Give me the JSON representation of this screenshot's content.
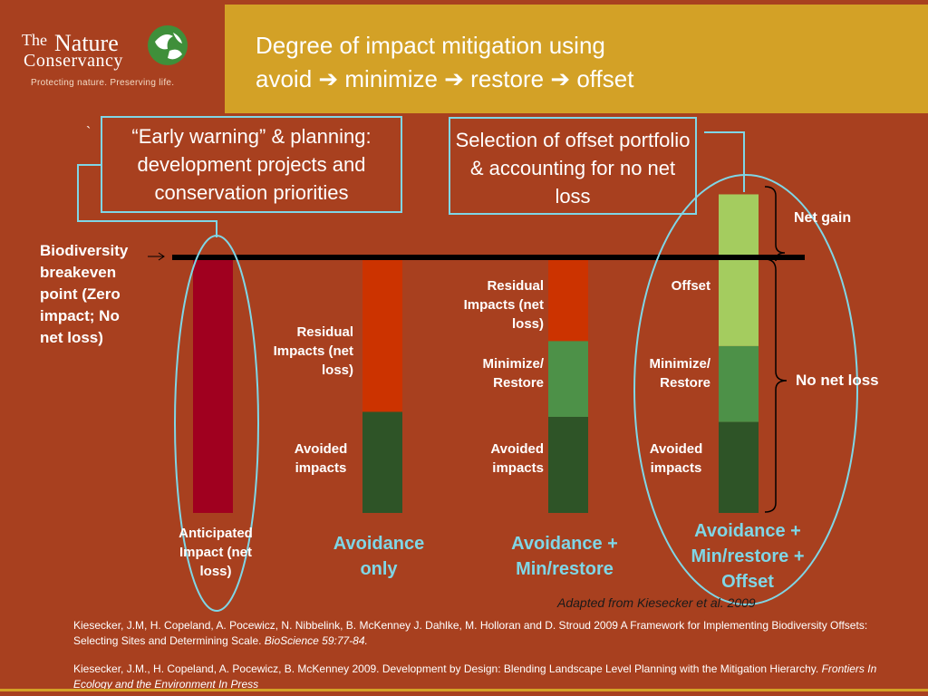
{
  "header": {
    "logo_the": "The",
    "logo_nature": "Nature",
    "logo_conservancy": "Conservancy",
    "logo_tagline": "Protecting nature. Preserving life.",
    "title_line1": "Degree of impact mitigation using",
    "title_line2": "avoid ➔ minimize ➔ restore ➔ offset"
  },
  "callouts": {
    "early_warning": "“Early warning” & planning: development projects and conservation priorities",
    "offset_selection": "Selection of offset portfolio & accounting for no net loss"
  },
  "breakeven_label": "Biodiversity breakeven point (Zero impact; No net loss)",
  "labels": {
    "residual_1": "Residual Impacts (net loss)",
    "avoided_1": "Avoided impacts",
    "residual_2": "Residual Impacts (net loss)",
    "minimize_2": "Minimize/ Restore",
    "avoided_2": "Avoided impacts",
    "offset_3": "Offset",
    "minimize_3": "Minimize/ Restore",
    "avoided_3": "Avoided impacts",
    "net_gain": "Net gain",
    "no_net_loss": "No net loss",
    "anticipated": "Anticipated Impact (net loss)"
  },
  "stages": {
    "avoidance_only": "Avoidance only",
    "avoidance_min": "Avoidance + Min/restore",
    "avoidance_full": "Avoidance + Min/restore + Offset"
  },
  "tick_mark": "`",
  "reference_note": "Adapted from Kiesecker et al. 2009",
  "citations": [
    {
      "text": "Kiesecker, J.M, H. Copeland, A. Pocewicz, N. Nibbelink, B. McKenney J. Dahlke, M. Holloran and D. Stroud 2009 A Framework for Implementing Biodiversity Offsets: Selecting Sites and Determining Scale. ",
      "journal": "BioScience 59:77-84."
    },
    {
      "text": "Kiesecker, J.M., H. Copeland, A. Pocewicz, B. McKenney 2009. Development by Design: Blending Landscape Level Planning with the Mitigation Hierarchy. ",
      "journal": "Frontiers In Ecology and the Environment In Press"
    }
  ],
  "colors": {
    "background": "#a8401f",
    "title_bar": "#d3a126",
    "anticipated_impact": "#a0001f",
    "residual_impact": "#cc3300",
    "minimize_restore": "#4d9148",
    "avoided": "#2e5427",
    "offset": "#a4cc5f",
    "callout_line": "#7fd6e6"
  },
  "chart_data": {
    "type": "bar",
    "categories": [
      "Anticipated Impact (net loss)",
      "Avoidance only",
      "Avoidance + Min/restore",
      "Avoidance + Min/restore + Offset"
    ],
    "series": [
      {
        "name": "Avoided impacts",
        "values": [
          0,
          0.4,
          0.38,
          0.36
        ]
      },
      {
        "name": "Minimize/ Restore",
        "values": [
          0,
          0,
          0.3,
          0.3
        ]
      },
      {
        "name": "Residual Impacts (net loss)",
        "values": [
          1.0,
          0.6,
          0.32,
          0
        ]
      },
      {
        "name": "Offset",
        "values": [
          0,
          0,
          0,
          0.6
        ]
      }
    ],
    "breakeven": 1.0
  }
}
